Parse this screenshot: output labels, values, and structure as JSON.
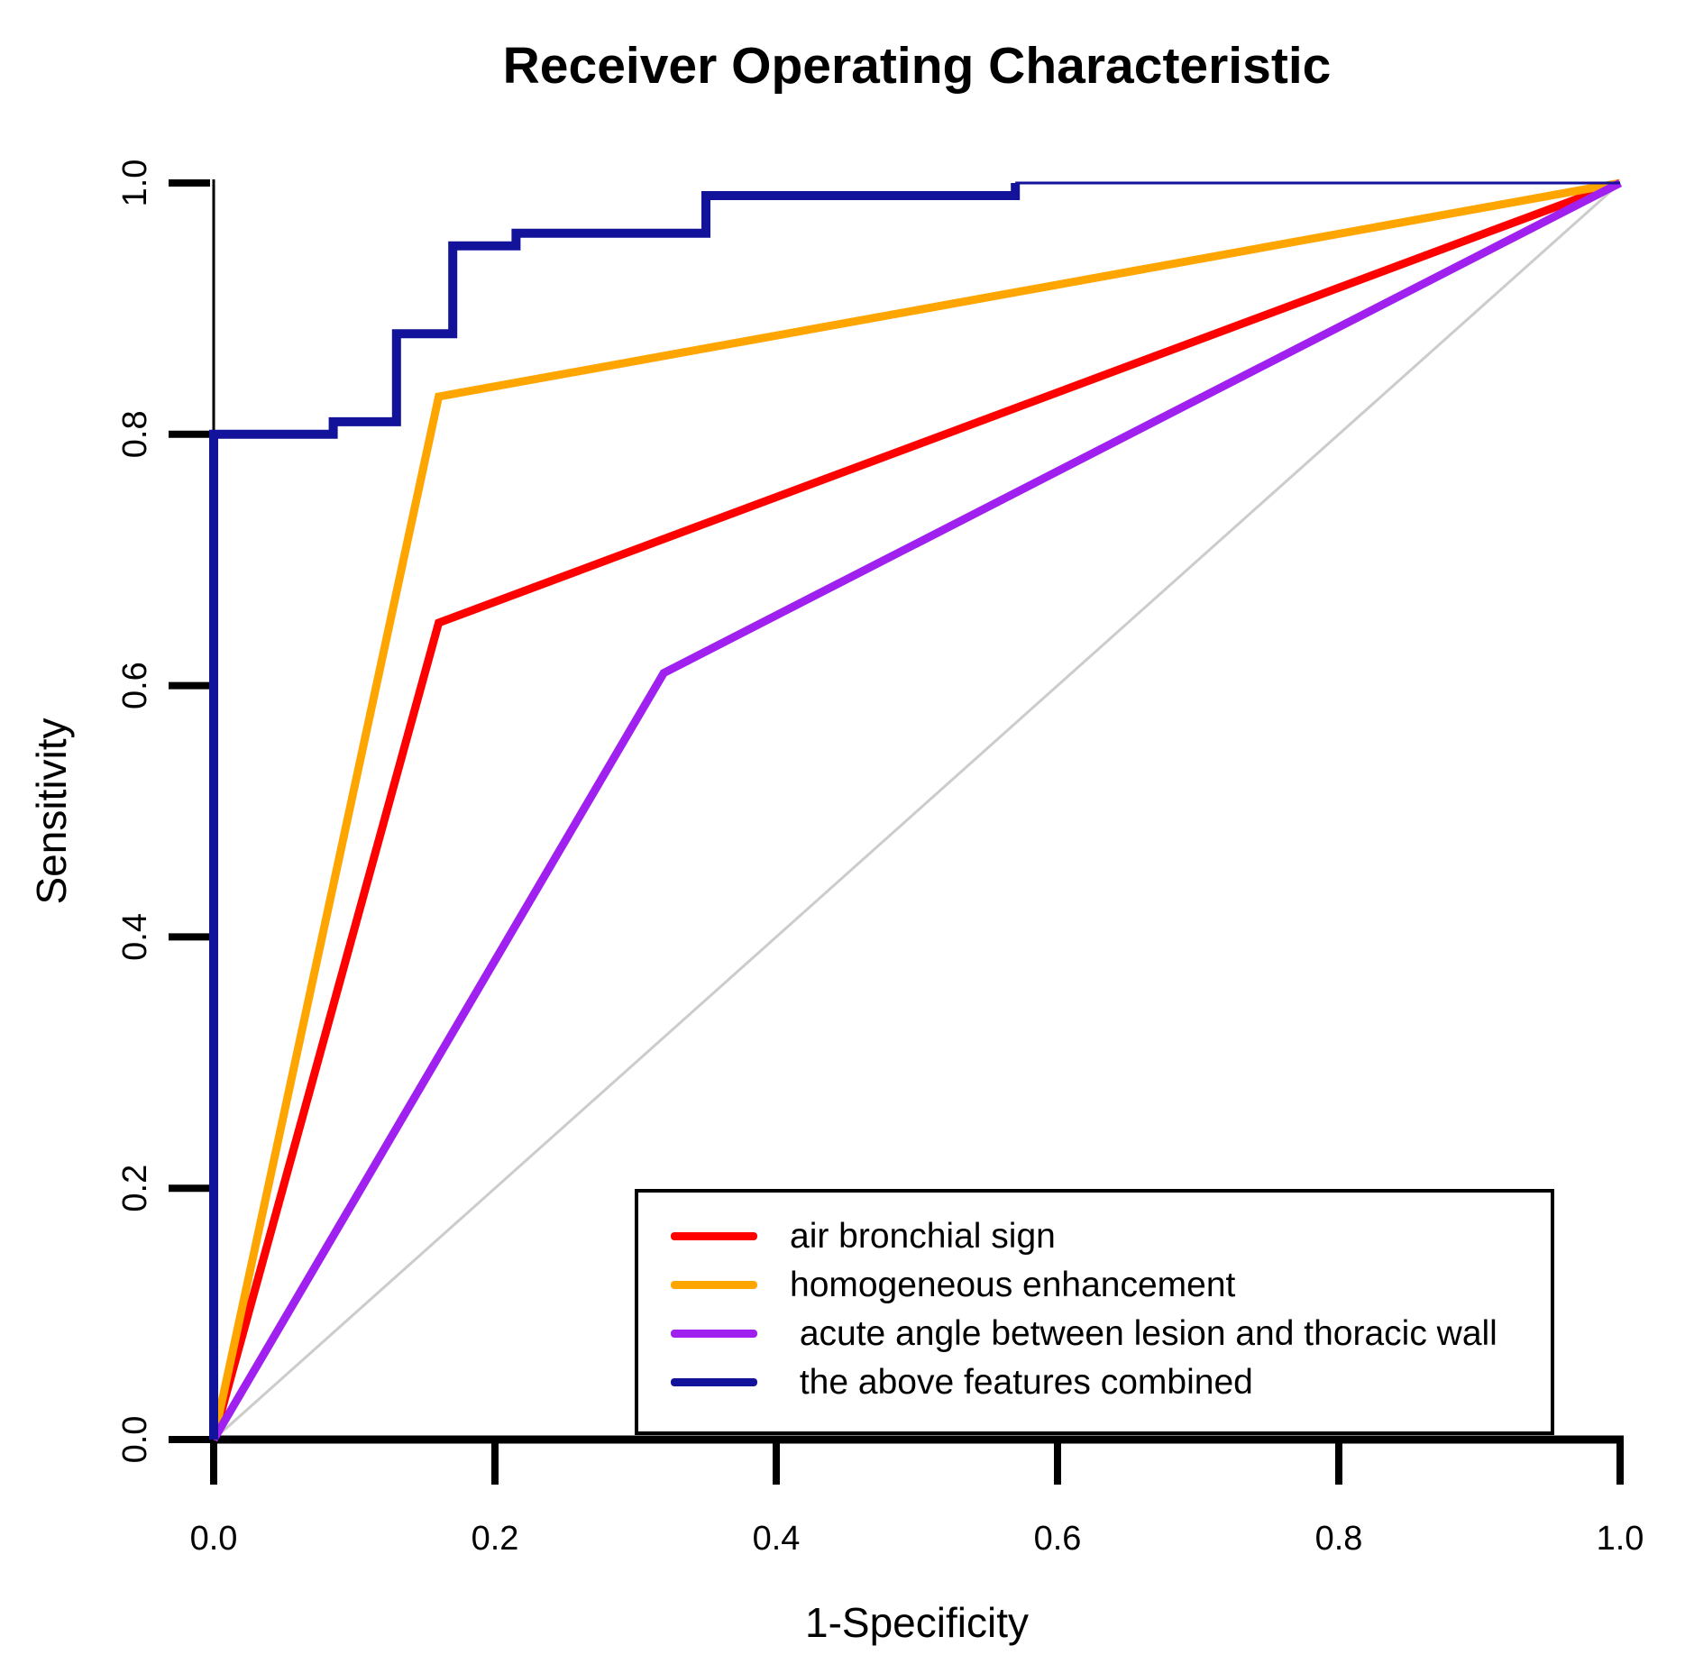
{
  "chart_data": {
    "type": "line",
    "title": "Receiver Operating Characteristic",
    "xlabel": "1-Specificity",
    "ylabel": "Sensitivity",
    "xlim": [
      0.0,
      1.0
    ],
    "ylim": [
      0.0,
      1.0
    ],
    "grid": false,
    "xticks": [
      0.0,
      0.2,
      0.4,
      0.6,
      0.8,
      1.0
    ],
    "xtick_labels": [
      "0.0",
      "0.2",
      "0.4",
      "0.6",
      "0.8",
      "1.0"
    ],
    "yticks": [
      0.0,
      0.2,
      0.4,
      0.6,
      0.8,
      1.0
    ],
    "ytick_labels": [
      "0.0",
      "0.2",
      "0.4",
      "0.6",
      "0.8",
      "1.0"
    ],
    "series": [
      {
        "name": "air bronchial sign",
        "color": "#ff0000",
        "points": [
          [
            0.0,
            0.0
          ],
          [
            0.16,
            0.65
          ],
          [
            1.0,
            1.0
          ]
        ]
      },
      {
        "name": "homogeneous enhancement",
        "color": "#ffa500",
        "points": [
          [
            0.0,
            0.0
          ],
          [
            0.16,
            0.83
          ],
          [
            1.0,
            1.0
          ]
        ]
      },
      {
        "name": "acute angle between lesion and thoracic wall",
        "color": "#a020f0",
        "points": [
          [
            0.0,
            0.0
          ],
          [
            0.32,
            0.61
          ],
          [
            1.0,
            1.0
          ]
        ]
      },
      {
        "name": "the above features combined",
        "color": "#12129a",
        "points": [
          [
            0.0,
            0.0
          ],
          [
            0.0,
            0.8
          ],
          [
            0.085,
            0.8
          ],
          [
            0.085,
            0.81
          ],
          [
            0.13,
            0.81
          ],
          [
            0.13,
            0.88
          ],
          [
            0.17,
            0.88
          ],
          [
            0.17,
            0.95
          ],
          [
            0.215,
            0.95
          ],
          [
            0.215,
            0.96
          ],
          [
            0.35,
            0.96
          ],
          [
            0.35,
            0.99
          ],
          [
            0.57,
            0.99
          ],
          [
            0.57,
            1.0
          ]
        ]
      }
    ],
    "combined_tail": {
      "color": "#12129a",
      "points": [
        [
          0.57,
          1.0
        ],
        [
          1.0,
          1.0
        ]
      ]
    },
    "reference_diagonal": {
      "color": "#cccccc",
      "points": [
        [
          0.0,
          0.0
        ],
        [
          1.0,
          1.0
        ]
      ]
    },
    "legend": {
      "position": "bottom-right-inside",
      "entries": [
        {
          "label": "air bronchial sign",
          "color": "#ff0000"
        },
        {
          "label": "homogeneous enhancement",
          "color": "#ffa500"
        },
        {
          "label": " acute angle between lesion and thoracic wall",
          "color": "#a020f0"
        },
        {
          "label": " the above features combined",
          "color": "#12129a"
        }
      ]
    }
  }
}
